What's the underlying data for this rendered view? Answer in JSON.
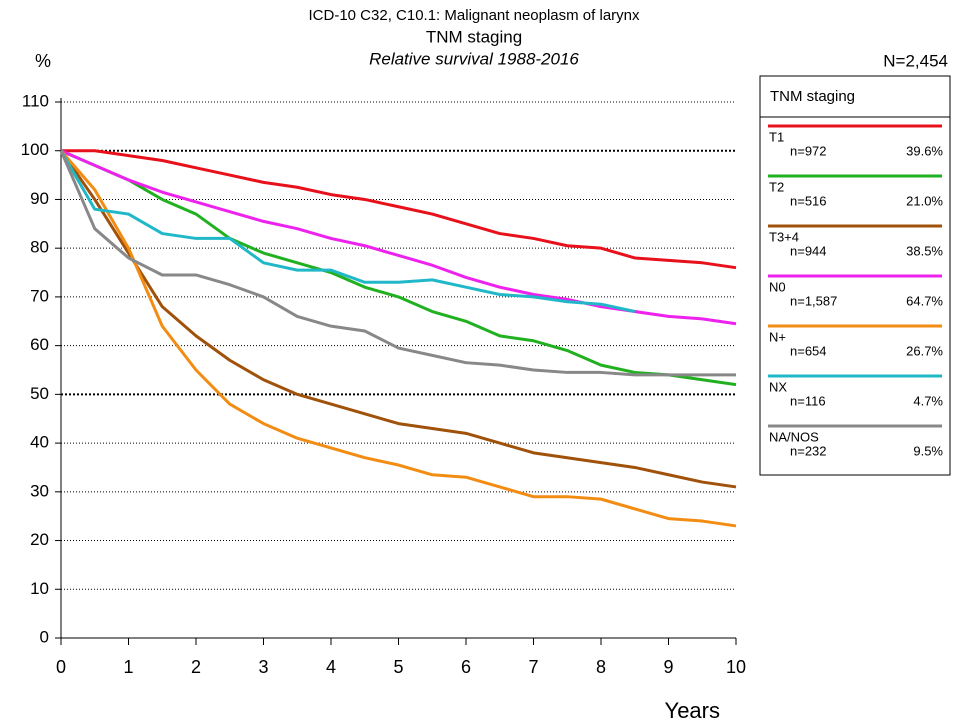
{
  "chart_data": {
    "type": "line",
    "title": "ICD-10 C32, C10.1: Malignant neoplasm of larynx",
    "subtitle": "TNM staging",
    "caption": "Relative survival 1988-2016",
    "y_label": "%",
    "x_label": "Years",
    "total_label": "N=2,454",
    "legend_title": "TNM staging",
    "x": [
      0,
      0.5,
      1,
      1.5,
      2,
      2.5,
      3,
      3.5,
      4,
      4.5,
      5,
      5.5,
      6,
      6.5,
      7,
      7.5,
      8,
      8.5,
      9,
      9.5,
      10
    ],
    "xlim": [
      0,
      10
    ],
    "xticks": [
      0,
      1,
      2,
      3,
      4,
      5,
      6,
      7,
      8,
      9,
      10
    ],
    "ylim": [
      0,
      110
    ],
    "yticks": [
      0,
      10,
      20,
      30,
      40,
      50,
      60,
      70,
      80,
      90,
      100,
      110
    ],
    "grid": true,
    "series": [
      {
        "name": "T1",
        "n_label": "n=972",
        "share_label": "39.6%",
        "color": "#e8101a",
        "values": [
          100,
          100,
          99,
          98,
          96.5,
          95,
          93.5,
          92.5,
          91,
          90,
          88.5,
          87,
          85,
          83,
          82,
          80.5,
          80,
          78,
          77.5,
          77,
          76
        ]
      },
      {
        "name": "T2",
        "n_label": "n=516",
        "share_label": "21.0%",
        "color": "#20b020",
        "values": [
          100,
          97,
          94,
          90,
          87,
          82,
          79,
          77,
          75,
          72,
          70,
          67,
          65,
          62,
          61,
          59,
          56,
          54.5,
          54,
          53,
          52
        ]
      },
      {
        "name": "T3+4",
        "n_label": "n=944",
        "share_label": "38.5%",
        "color": "#a0520a",
        "values": [
          100,
          90,
          79,
          68,
          62,
          57,
          53,
          50,
          48,
          46,
          44,
          43,
          42,
          40,
          38,
          37,
          36,
          35,
          33.5,
          32,
          31
        ]
      },
      {
        "name": "N0",
        "n_label": "n=1,587",
        "share_label": "64.7%",
        "color": "#ee22ee",
        "values": [
          100,
          97,
          94,
          91.5,
          89.5,
          87.5,
          85.5,
          84,
          82,
          80.5,
          78.5,
          76.5,
          74,
          72,
          70.5,
          69.5,
          68,
          67,
          66,
          65.5,
          64.5
        ]
      },
      {
        "name": "N+",
        "n_label": "n=654",
        "share_label": "26.7%",
        "color": "#f28c12",
        "values": [
          100,
          92,
          80,
          64,
          55,
          48,
          44,
          41,
          39,
          37,
          35.5,
          33.5,
          33,
          31,
          29,
          29,
          28.5,
          26.5,
          24.5,
          24,
          23
        ]
      },
      {
        "name": "NX",
        "n_label": "n=116",
        "share_label": "4.7%",
        "color": "#20b8c8",
        "values": [
          100,
          88,
          87,
          83,
          82,
          82,
          77,
          75.5,
          75.5,
          73,
          73,
          73.5,
          72,
          70.5,
          70,
          69,
          68.5,
          67,
          null,
          null,
          null
        ]
      },
      {
        "name": "NA/NOS",
        "n_label": "n=232",
        "share_label": "9.5%",
        "color": "#888888",
        "values": [
          100,
          84,
          78,
          74.5,
          74.5,
          72.5,
          70,
          66,
          64,
          63,
          59.5,
          58,
          56.5,
          56,
          55,
          54.5,
          54.5,
          54,
          54,
          54,
          54
        ]
      }
    ]
  }
}
